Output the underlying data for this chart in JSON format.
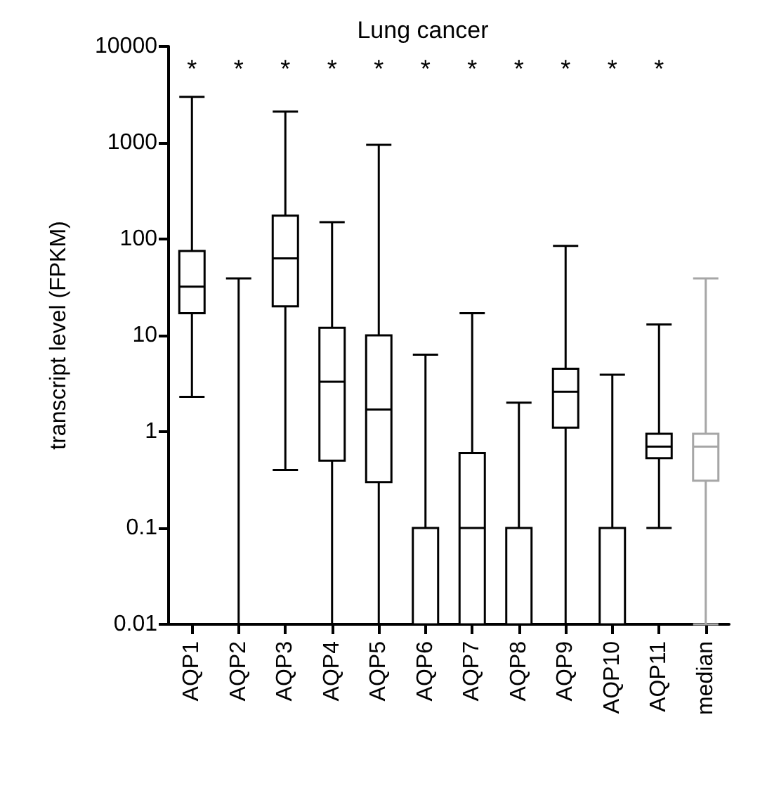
{
  "chart_data": {
    "type": "box",
    "title": "Lung cancer",
    "ylabel": "transcript level (FPKM)",
    "categories": [
      "AQP1",
      "AQP2",
      "AQP3",
      "AQP4",
      "AQP5",
      "AQP6",
      "AQP7",
      "AQP8",
      "AQP9",
      "AQP10",
      "AQP11",
      "median"
    ],
    "boxes": [
      {
        "low": 2.3,
        "q1": 17,
        "median": 32,
        "q3": 75,
        "high": 3000
      },
      {
        "low": 0.01,
        "q1": 0.01,
        "median": 0.01,
        "q3": 0.01,
        "high": 39
      },
      {
        "low": 0.4,
        "q1": 20,
        "median": 63,
        "q3": 175,
        "high": 2100
      },
      {
        "low": 0.01,
        "q1": 0.5,
        "median": 3.3,
        "q3": 12,
        "high": 150
      },
      {
        "low": 0.01,
        "q1": 0.3,
        "median": 1.7,
        "q3": 10,
        "high": 950
      },
      {
        "low": 0.01,
        "q1": 0.01,
        "median": 0.01,
        "q3": 0.1,
        "high": 6.3
      },
      {
        "low": 0.01,
        "q1": 0.01,
        "median": 0.1,
        "q3": 0.6,
        "high": 17
      },
      {
        "low": 0.01,
        "q1": 0.01,
        "median": 0.01,
        "q3": 0.1,
        "high": 2
      },
      {
        "low": 0.01,
        "q1": 1.1,
        "median": 2.6,
        "q3": 4.5,
        "high": 85
      },
      {
        "low": 0.01,
        "q1": 0.01,
        "median": 0.01,
        "q3": 0.1,
        "high": 3.9
      },
      {
        "low": 0.1,
        "q1": 0.53,
        "median": 0.7,
        "q3": 0.95,
        "high": 13
      },
      {
        "low": 0.01,
        "q1": 0.31,
        "median": 0.7,
        "q3": 0.95,
        "high": 39
      }
    ],
    "colors": [
      "#000000",
      "#000000",
      "#000000",
      "#000000",
      "#000000",
      "#000000",
      "#000000",
      "#000000",
      "#000000",
      "#000000",
      "#000000",
      "#a6a6a6"
    ],
    "log": "y",
    "ylim": [
      0.01,
      10000
    ],
    "yticks": [
      0.01,
      0.1,
      1,
      10,
      100,
      1000,
      10000
    ],
    "grid": false,
    "annotations": [
      "*",
      "*",
      "*",
      "*",
      "*",
      "*",
      "*",
      "*",
      "*",
      "*",
      "*"
    ]
  }
}
